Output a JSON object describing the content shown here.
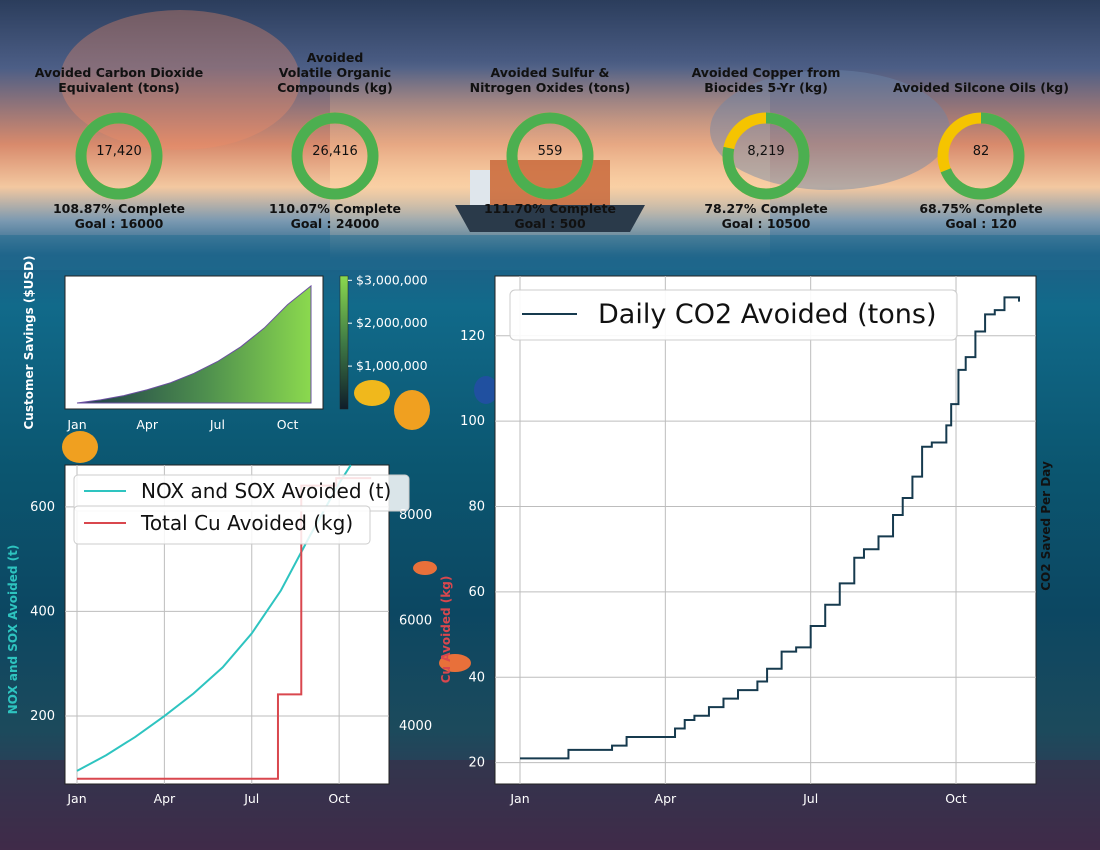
{
  "kpis": [
    {
      "title_lines": [
        "Avoided Carbon Dioxide",
        "Equivalent (tons)"
      ],
      "value": "17,420",
      "value_num": 17420,
      "percent_text": "108.87% Complete",
      "goal_text": "Goal : 16000",
      "goal": 16000,
      "complete_fraction": 1.0
    },
    {
      "title_lines": [
        "Avoided",
        "Volatile Organic",
        "Compounds (kg)"
      ],
      "value": "26,416",
      "value_num": 26416,
      "percent_text": "110.07% Complete",
      "goal_text": "Goal : 24000",
      "goal": 24000,
      "complete_fraction": 1.0
    },
    {
      "title_lines": [
        "Avoided Sulfur &",
        "Nitrogen Oxides (tons)"
      ],
      "value": "559",
      "value_num": 559,
      "percent_text": "111.70% Complete",
      "goal_text": "Goal : 500",
      "goal": 500,
      "complete_fraction": 1.0
    },
    {
      "title_lines": [
        "Avoided Copper from",
        "Biocides 5-Yr (kg)"
      ],
      "value": "8,219",
      "value_num": 8219,
      "percent_text": "78.27% Complete",
      "goal_text": "Goal : 10500",
      "goal": 10500,
      "complete_fraction": 0.7827
    },
    {
      "title_lines": [
        "Avoided Silcone Oils (kg)"
      ],
      "value": "82",
      "value_num": 82,
      "percent_text": "68.75% Complete",
      "goal_text": "Goal : 120",
      "goal": 120,
      "complete_fraction": 0.6875
    }
  ],
  "colors": {
    "donut_complete": "#4caf50",
    "donut_remaining": "#f5c400",
    "nox_line": "#2ec4c0",
    "cu_line": "#d9474e",
    "co2_line": "#163a4e",
    "savings_light": "#8bd94e",
    "savings_dark": "#1c3b48"
  },
  "chart_data": [
    {
      "type": "area",
      "ylabel": "Customer Savings ($USD)",
      "x_ticks": [
        "Jan",
        "Apr",
        "Jul",
        "Oct"
      ],
      "colorbar_ticks": [
        "$1,000,000",
        "$2,000,000",
        "$3,000,000"
      ],
      "x_month": [
        0,
        1,
        2,
        3,
        4,
        5,
        6,
        7,
        8,
        9,
        10
      ],
      "values": [
        0,
        80000,
        190000,
        340000,
        520000,
        760000,
        1060000,
        1440000,
        1920000,
        2520000,
        3000000
      ],
      "ylim": [
        0,
        3100000
      ]
    },
    {
      "type": "line",
      "ylabel": "NOX and SOX Avoided (t)",
      "y2label": "Cu Avoided (kg)",
      "legend_position": "top-left",
      "x_ticks": [
        "Jan",
        "Apr",
        "Jul",
        "Oct"
      ],
      "y_ticks": [
        "200",
        "400",
        "600"
      ],
      "y2_ticks": [
        "4000",
        "6000",
        "8000"
      ],
      "series": [
        {
          "name": "NOX and SOX Avoided (t)",
          "x_month": [
            0,
            1,
            2,
            3,
            4,
            5,
            6,
            7,
            8,
            9,
            9.4
          ],
          "values": [
            95,
            125,
            160,
            200,
            243,
            293,
            358,
            440,
            545,
            645,
            690
          ]
        },
        {
          "name": "Total Cu Avoided (kg)",
          "steps": [
            [
              0,
              3000
            ],
            [
              6.9,
              3000
            ],
            [
              6.9,
              4600
            ],
            [
              7.7,
              4600
            ],
            [
              7.7,
              8560
            ],
            [
              8.9,
              8560
            ],
            [
              8.9,
              8700
            ],
            [
              10.1,
              8700
            ]
          ]
        }
      ],
      "ylim": [
        70,
        680
      ],
      "y2lim": [
        2900,
        8950
      ]
    },
    {
      "type": "line",
      "ylabel": "CO2 Saved Per Day",
      "legend_position": "top-left",
      "x_ticks": [
        "Jan",
        "Apr",
        "Jul",
        "Oct"
      ],
      "y_ticks": [
        "20",
        "40",
        "60",
        "80",
        "100",
        "120"
      ],
      "series": [
        {
          "name": "Daily CO2 Avoided (tons)",
          "x_month": [
            0,
            0.3,
            0.6,
            0.9,
            1.0,
            1.4,
            1.7,
            1.9,
            2.2,
            2.6,
            3.0,
            3.2,
            3.4,
            3.6,
            3.9,
            4.2,
            4.5,
            4.9,
            5.1,
            5.4,
            5.7,
            6.0,
            6.3,
            6.6,
            6.9,
            7.1,
            7.4,
            7.7,
            7.9,
            8.1,
            8.3,
            8.5,
            8.8,
            8.9,
            9.05,
            9.2,
            9.4,
            9.6,
            9.8,
            10.0,
            10.3
          ],
          "values": [
            21,
            21,
            21,
            21,
            23,
            23,
            23,
            24,
            26,
            26,
            26,
            28,
            30,
            31,
            33,
            35,
            37,
            39,
            42,
            46,
            47,
            52,
            57,
            62,
            68,
            70,
            73,
            78,
            82,
            87,
            94,
            95,
            99,
            104,
            112,
            115,
            121,
            125,
            126,
            129,
            128
          ]
        }
      ],
      "ylim": [
        15,
        134
      ]
    }
  ]
}
